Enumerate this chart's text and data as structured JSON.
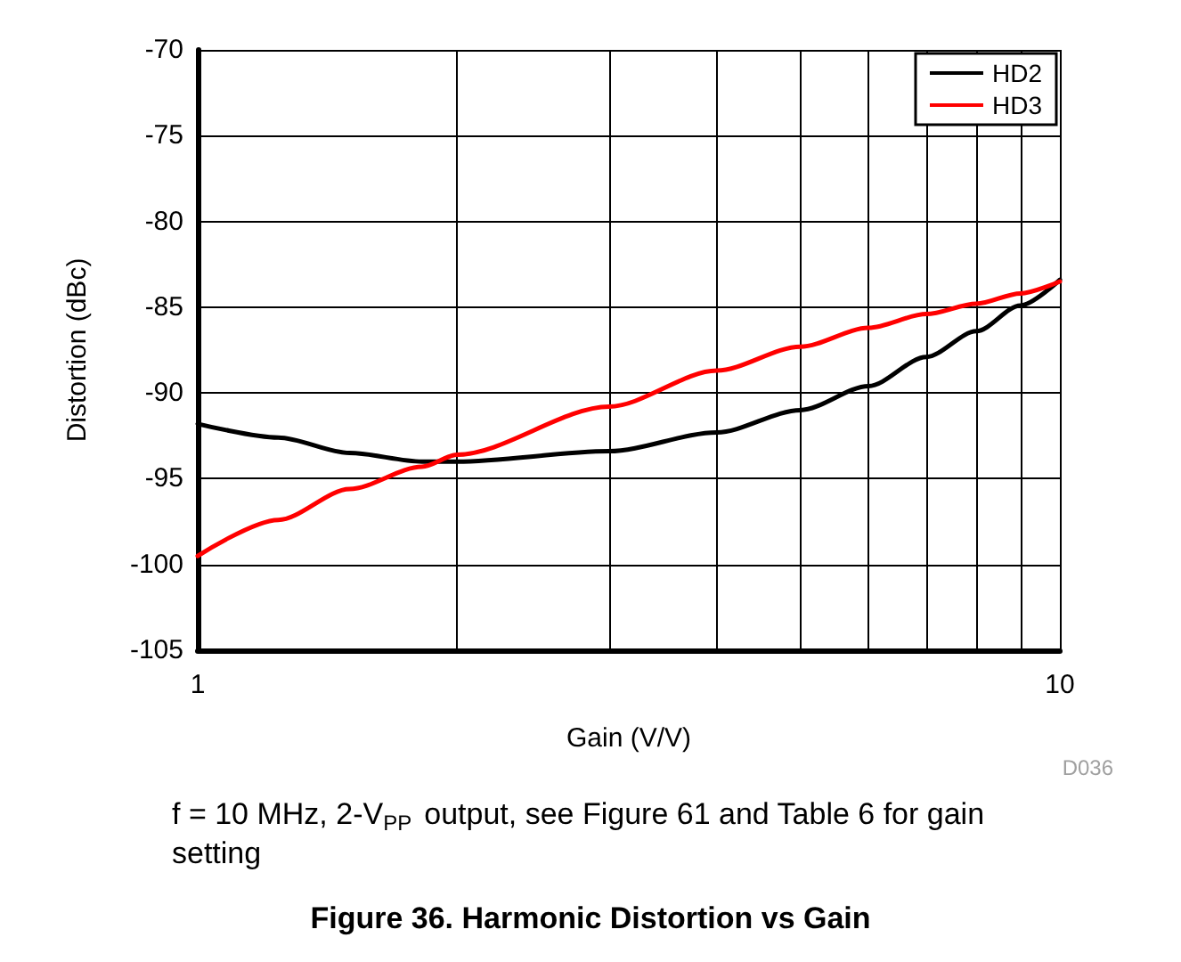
{
  "chart_data": {
    "type": "line",
    "title": "Figure 36. Harmonic Distortion vs Gain",
    "xlabel": "Gain (V/V)",
    "ylabel": "Distortion (dBc)",
    "annotations": [
      "D036",
      "f = 10 MHz, 2-V$_{PP}$ output, see Figure 61 and Table 6 for gain setting"
    ],
    "log": "x",
    "grid": true,
    "legend": "top right",
    "line_style": "solid",
    "marker": "none",
    "xlim": [
      1,
      10
    ],
    "xticks": [
      1,
      {
        "value": 2,
        "label": null
      },
      {
        "value": 3,
        "label": null
      },
      {
        "value": 4,
        "label": null
      },
      {
        "value": 5,
        "label": null
      },
      {
        "value": 6,
        "label": null
      },
      {
        "value": 7,
        "label": null
      },
      {
        "value": 8,
        "label": null
      },
      {
        "value": 9,
        "label": null
      },
      10
    ],
    "ylim": [
      -105,
      -70
    ],
    "yticks": [
      -105,
      -100,
      -95,
      -90,
      -85,
      -80,
      -75,
      -70
    ],
    "x": [
      1,
      1.24,
      1.5,
      1.82,
      2,
      3,
      4,
      5,
      6,
      7,
      8,
      9,
      10
    ],
    "series": [
      {
        "name": "HD2",
        "color": "#000000",
        "values": [
          -91.8,
          -92.6,
          -93.5,
          -94.0,
          -94.0,
          -93.4,
          -92.3,
          -91.0,
          -89.6,
          -87.9,
          -86.4,
          -84.9,
          -83.4
        ]
      },
      {
        "name": "HD3",
        "color": "#ff0000",
        "values": [
          -99.5,
          -97.4,
          -95.6,
          -94.3,
          -93.6,
          -90.8,
          -88.7,
          -87.3,
          -86.2,
          -85.4,
          -84.8,
          -84.2,
          -83.5
        ]
      }
    ]
  }
}
